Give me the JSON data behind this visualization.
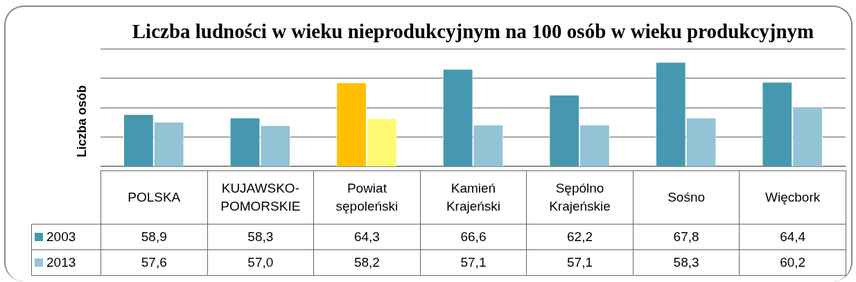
{
  "chart_data": {
    "type": "bar",
    "title": "Liczba ludności w wieku nieprodukcyjnym na 100 osób w wieku produkcyjnym",
    "ylabel": "Liczba osób",
    "categories": [
      "POLSKA",
      "KUJAWSKO-POMORSKIE",
      "Powiat sępoleński",
      "Kamień Krajeński",
      "Sępólno Krajeńskie",
      "Sośno",
      "Więcbork"
    ],
    "series": [
      {
        "name": "2003",
        "color": "#4598b0",
        "colors": [
          "#4598b0",
          "#4598b0",
          "#ffc000",
          "#4598b0",
          "#4598b0",
          "#4598b0",
          "#4598b0"
        ],
        "values": [
          58.9,
          58.3,
          64.3,
          66.6,
          62.2,
          67.8,
          64.4
        ],
        "value_labels": [
          "58,9",
          "58,3",
          "64,3",
          "66,6",
          "62,2",
          "67,8",
          "64,4"
        ]
      },
      {
        "name": "2013",
        "color": "#93c3d5",
        "colors": [
          "#93c3d5",
          "#93c3d5",
          "#fffa74",
          "#93c3d5",
          "#93c3d5",
          "#93c3d5",
          "#93c3d5"
        ],
        "values": [
          57.6,
          57.0,
          58.2,
          57.1,
          57.1,
          58.3,
          60.2
        ],
        "value_labels": [
          "57,6",
          "57,0",
          "58,2",
          "57,1",
          "57,1",
          "58,3",
          "60,2"
        ]
      }
    ],
    "tick_labels": "x",
    "grid": "y",
    "legend": "left"
  }
}
